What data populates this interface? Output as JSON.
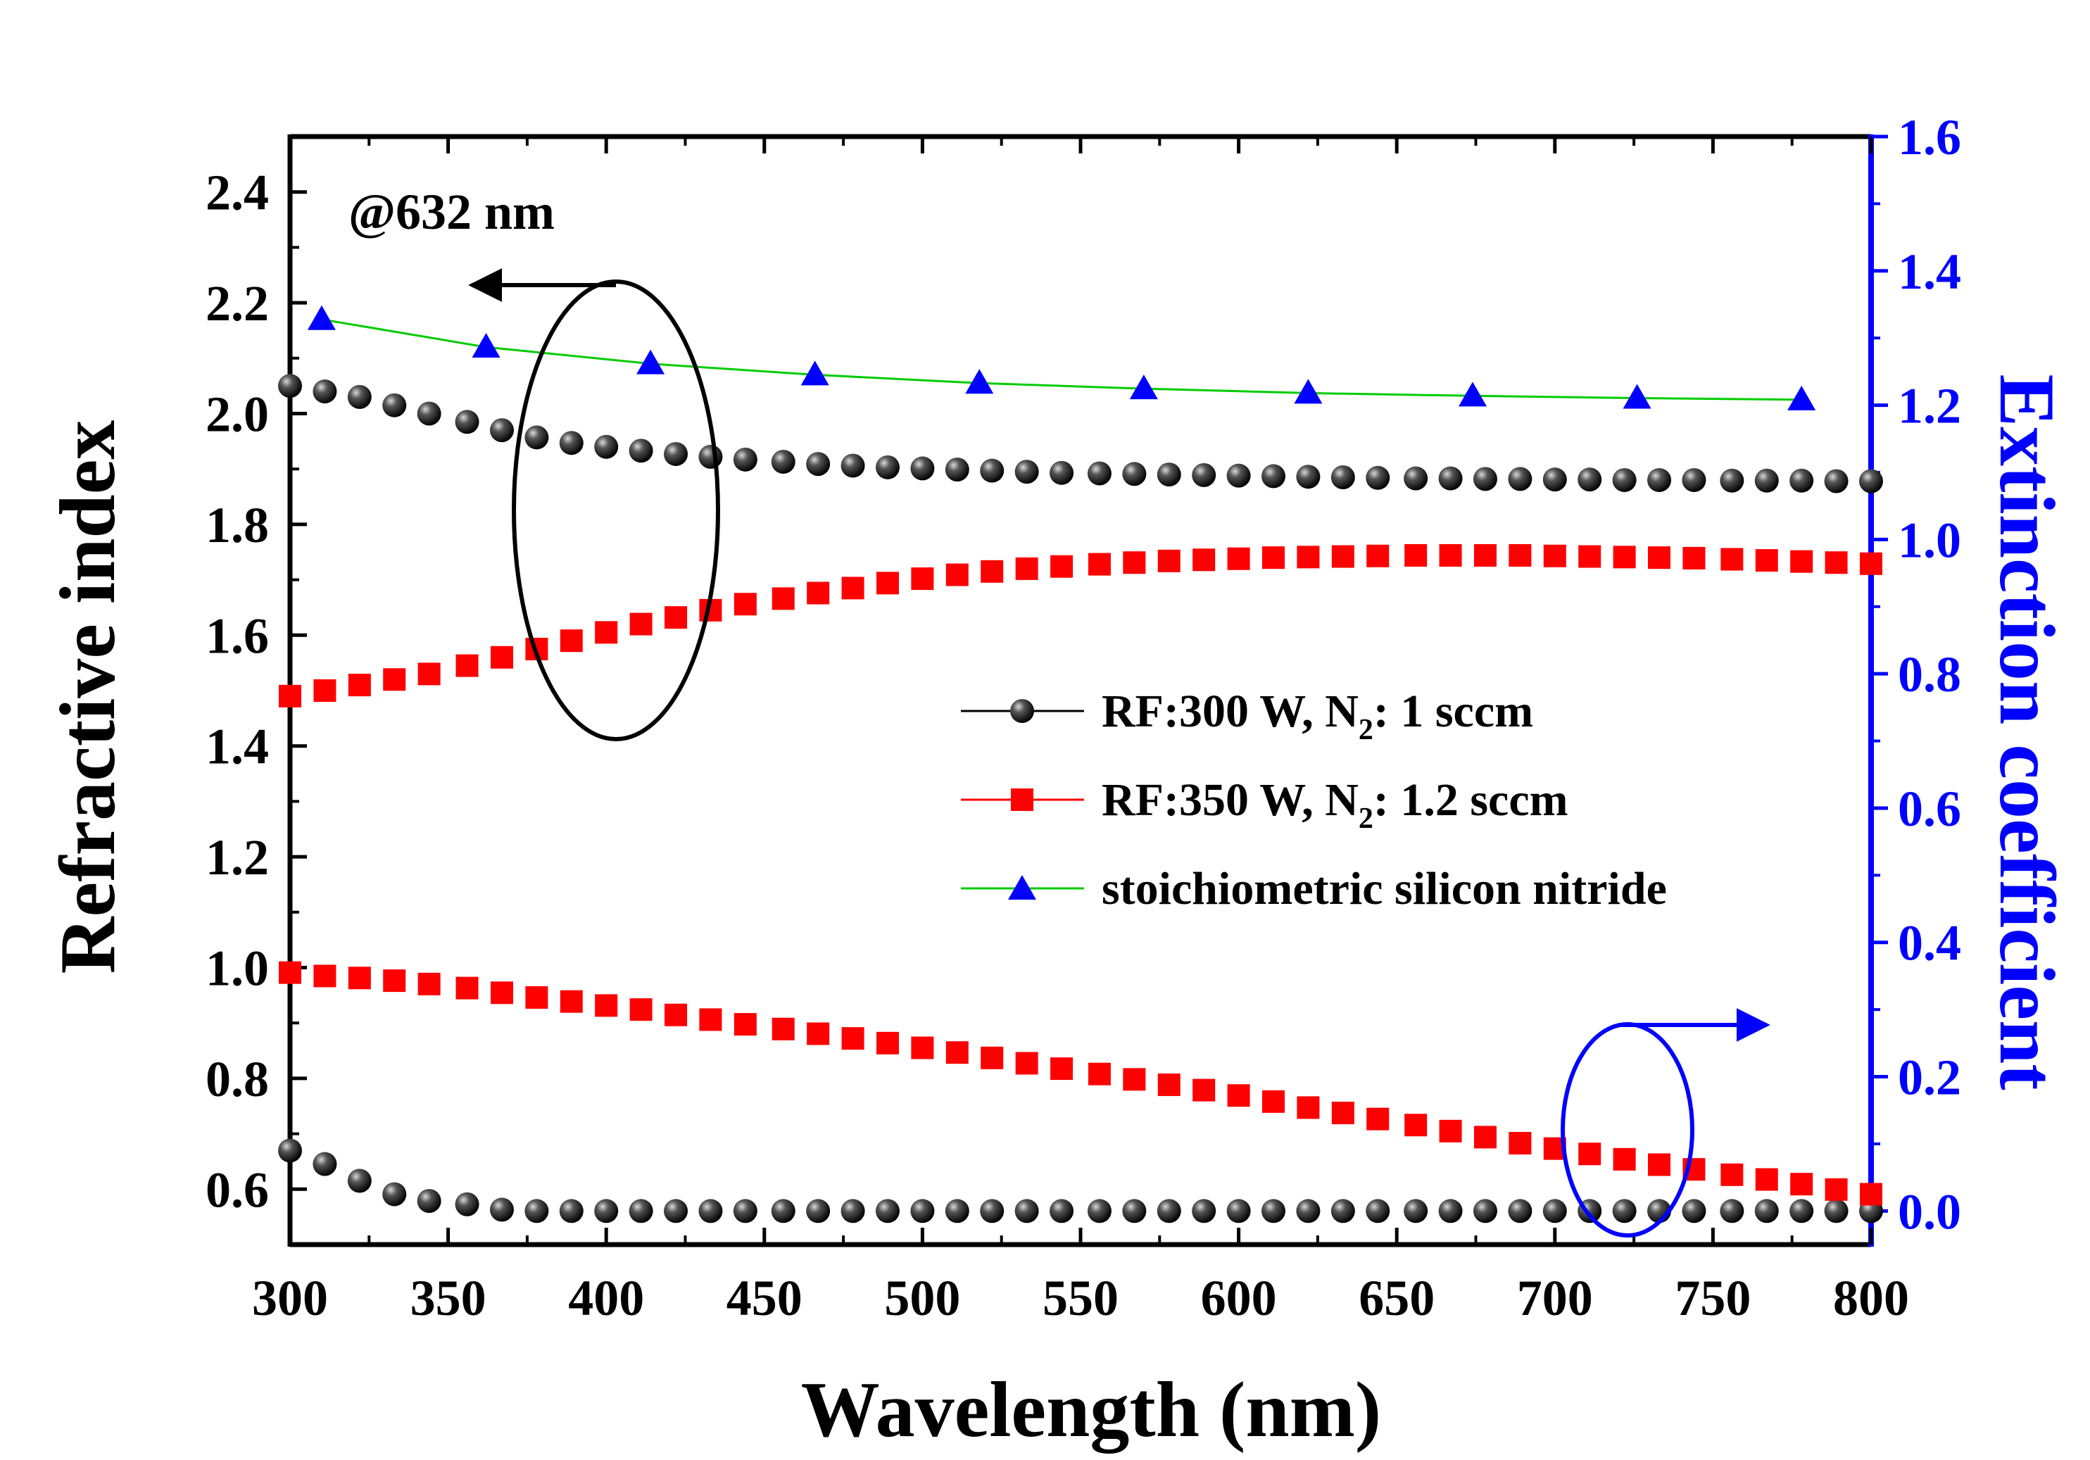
{
  "chart_data": {
    "type": "scatter",
    "xlabel": "Wavelength (nm)",
    "ylabel_left": "Refractive index",
    "ylabel_right": "Extinction coefficient",
    "annotation": "@632 nm",
    "xlim": [
      300,
      800
    ],
    "ylim_left": [
      0.5,
      2.5
    ],
    "ylim_right": [
      -0.05,
      1.6
    ],
    "x_ticks": [
      "300",
      "350",
      "400",
      "450",
      "500",
      "550",
      "600",
      "650",
      "700",
      "750",
      "800"
    ],
    "y_left_ticks": [
      "0.6",
      "0.8",
      "1.0",
      "1.2",
      "1.4",
      "1.6",
      "1.8",
      "2.0",
      "2.2",
      "2.4"
    ],
    "y_right_ticks": [
      "0.0",
      "0.2",
      "0.4",
      "0.6",
      "0.8",
      "1.0",
      "1.2",
      "1.4",
      "1.6"
    ],
    "colors": {
      "black": "#000000",
      "red": "#ff0000",
      "blue": "#0000ff",
      "green": "#00cc00",
      "right_axis": "#0000ff"
    },
    "legend": [
      {
        "label": "RF:300 W, N",
        "sub": "2",
        "suffix": ": 1 sccm"
      },
      {
        "label": "RF:350 W, N",
        "sub": "2",
        "suffix": ": 1.2 sccm"
      },
      {
        "label": "stoichiometric silicon nitride",
        "sub": "",
        "suffix": ""
      }
    ],
    "dense_x": [
      300,
      311,
      322,
      333,
      344,
      356,
      367,
      378,
      389,
      400,
      411,
      422,
      433,
      444,
      456,
      467,
      478,
      489,
      500,
      511,
      522,
      533,
      544,
      556,
      567,
      578,
      589,
      600,
      611,
      622,
      633,
      644,
      656,
      667,
      678,
      689,
      700,
      711,
      722,
      733,
      744,
      756,
      767,
      778,
      789,
      800
    ],
    "series": [
      {
        "name": "RF:300 W n",
        "axis": "left",
        "marker": "sphere",
        "values": [
          2.05,
          2.04,
          2.03,
          2.015,
          2.0,
          1.985,
          1.97,
          1.957,
          1.947,
          1.94,
          1.933,
          1.927,
          1.922,
          1.917,
          1.913,
          1.909,
          1.906,
          1.903,
          1.901,
          1.899,
          1.897,
          1.895,
          1.893,
          1.892,
          1.891,
          1.89,
          1.889,
          1.888,
          1.887,
          1.886,
          1.885,
          1.884,
          1.883,
          1.883,
          1.882,
          1.882,
          1.881,
          1.881,
          1.88,
          1.88,
          1.88,
          1.879,
          1.879,
          1.879,
          1.878,
          1.878
        ]
      },
      {
        "name": "RF:350 W n",
        "axis": "left",
        "marker": "square",
        "values": [
          1.49,
          1.5,
          1.51,
          1.52,
          1.53,
          1.545,
          1.56,
          1.575,
          1.59,
          1.605,
          1.62,
          1.632,
          1.645,
          1.656,
          1.666,
          1.676,
          1.685,
          1.694,
          1.702,
          1.709,
          1.715,
          1.72,
          1.724,
          1.728,
          1.731,
          1.734,
          1.736,
          1.738,
          1.74,
          1.741,
          1.742,
          1.743,
          1.744,
          1.744,
          1.744,
          1.744,
          1.743,
          1.742,
          1.741,
          1.74,
          1.739,
          1.737,
          1.735,
          1.733,
          1.731,
          1.729
        ]
      },
      {
        "name": "RF:300 W k",
        "axis": "right",
        "marker": "sphere",
        "values": [
          0.09,
          0.07,
          0.045,
          0.025,
          0.015,
          0.01,
          0.002,
          0.0,
          0.0,
          0.0,
          0.0,
          0.0,
          0.0,
          0.0,
          0.0,
          0.0,
          0.0,
          0.0,
          0.0,
          0.0,
          0.0,
          0.0,
          0.0,
          0.0,
          0.0,
          0.0,
          0.0,
          0.0,
          0.0,
          0.0,
          0.0,
          0.0,
          0.0,
          0.0,
          0.0,
          0.0,
          0.0,
          0.0,
          0.0,
          0.0,
          0.0,
          0.0,
          0.0,
          0.0,
          0.0,
          0.0
        ]
      },
      {
        "name": "RF:350 W k",
        "axis": "right",
        "marker": "square",
        "values": [
          0.355,
          0.35,
          0.347,
          0.343,
          0.338,
          0.332,
          0.325,
          0.318,
          0.312,
          0.306,
          0.3,
          0.292,
          0.285,
          0.278,
          0.271,
          0.264,
          0.257,
          0.25,
          0.243,
          0.236,
          0.228,
          0.22,
          0.212,
          0.204,
          0.196,
          0.188,
          0.18,
          0.172,
          0.163,
          0.154,
          0.146,
          0.137,
          0.128,
          0.119,
          0.11,
          0.101,
          0.093,
          0.085,
          0.077,
          0.069,
          0.062,
          0.054,
          0.047,
          0.04,
          0.032,
          0.025
        ]
      },
      {
        "name": "stoichiometric silicon nitride",
        "axis": "left",
        "marker": "triangle",
        "x": [
          310,
          362,
          414,
          466,
          518,
          570,
          622,
          674,
          726,
          778
        ],
        "values": [
          2.17,
          2.12,
          2.09,
          2.07,
          2.055,
          2.045,
          2.037,
          2.032,
          2.028,
          2.025
        ]
      }
    ]
  }
}
